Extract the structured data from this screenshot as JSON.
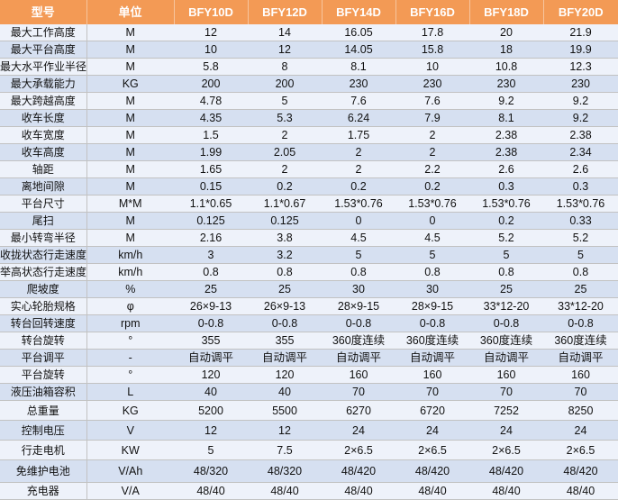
{
  "table": {
    "headers": [
      "型号",
      "单位",
      "BFY10D",
      "BFY12D",
      "BFY14D",
      "BFY16D",
      "BFY18D",
      "BFY20D"
    ],
    "rows": [
      {
        "name": "最大工作高度",
        "unit": "M",
        "values": [
          "12",
          "14",
          "16.05",
          "17.8",
          "20",
          "21.9"
        ]
      },
      {
        "name": "最大平台高度",
        "unit": "M",
        "values": [
          "10",
          "12",
          "14.05",
          "15.8",
          "18",
          "19.9"
        ]
      },
      {
        "name": "最大水平作业半径",
        "unit": "M",
        "values": [
          "5.8",
          "8",
          "8.1",
          "10",
          "10.8",
          "12.3"
        ]
      },
      {
        "name": "最大承载能力",
        "unit": "KG",
        "values": [
          "200",
          "200",
          "230",
          "230",
          "230",
          "230"
        ]
      },
      {
        "name": "最大跨越高度",
        "unit": "M",
        "values": [
          "4.78",
          "5",
          "7.6",
          "7.6",
          "9.2",
          "9.2"
        ]
      },
      {
        "name": "收车长度",
        "unit": "M",
        "values": [
          "4.35",
          "5.3",
          "6.24",
          "7.9",
          "8.1",
          "9.2"
        ]
      },
      {
        "name": "收车宽度",
        "unit": "M",
        "values": [
          "1.5",
          "2",
          "1.75",
          "2",
          "2.38",
          "2.38"
        ]
      },
      {
        "name": "收车高度",
        "unit": "M",
        "values": [
          "1.99",
          "2.05",
          "2",
          "2",
          "2.38",
          "2.34"
        ]
      },
      {
        "name": "轴距",
        "unit": "M",
        "values": [
          "1.65",
          "2",
          "2",
          "2.2",
          "2.6",
          "2.6"
        ]
      },
      {
        "name": "离地间隙",
        "unit": "M",
        "values": [
          "0.15",
          "0.2",
          "0.2",
          "0.2",
          "0.3",
          "0.3"
        ]
      },
      {
        "name": "平台尺寸",
        "unit": "M*M",
        "values": [
          "1.1*0.65",
          "1.1*0.67",
          "1.53*0.76",
          "1.53*0.76",
          "1.53*0.76",
          "1.53*0.76"
        ]
      },
      {
        "name": "尾扫",
        "unit": "M",
        "values": [
          "0.125",
          "0.125",
          "0",
          "0",
          "0.2",
          "0.33"
        ]
      },
      {
        "name": "最小转弯半径",
        "unit": "M",
        "values": [
          "2.16",
          "3.8",
          "4.5",
          "4.5",
          "5.2",
          "5.2"
        ]
      },
      {
        "name": "收拢状态行走速度",
        "unit": "km/h",
        "values": [
          "3",
          "3.2",
          "5",
          "5",
          "5",
          "5"
        ]
      },
      {
        "name": "举高状态行走速度",
        "unit": "km/h",
        "values": [
          "0.8",
          "0.8",
          "0.8",
          "0.8",
          "0.8",
          "0.8"
        ]
      },
      {
        "name": "爬坡度",
        "unit": "%",
        "values": [
          "25",
          "25",
          "30",
          "30",
          "25",
          "25"
        ]
      },
      {
        "name": "实心轮胎规格",
        "unit": "φ",
        "values": [
          "26×9-13",
          "26×9-13",
          "28×9-15",
          "28×9-15",
          "33*12-20",
          "33*12-20"
        ]
      },
      {
        "name": "转台回转速度",
        "unit": "rpm",
        "values": [
          "0-0.8",
          "0-0.8",
          "0-0.8",
          "0-0.8",
          "0-0.8",
          "0-0.8"
        ]
      },
      {
        "name": "转台旋转",
        "unit": "°",
        "values": [
          "355",
          "355",
          "360度连续",
          "360度连续",
          "360度连续",
          "360度连续"
        ]
      },
      {
        "name": "平台调平",
        "unit": "-",
        "values": [
          "自动调平",
          "自动调平",
          "自动调平",
          "自动调平",
          "自动调平",
          "自动调平"
        ]
      },
      {
        "name": "平台旋转",
        "unit": "°",
        "values": [
          "120",
          "120",
          "160",
          "160",
          "160",
          "160"
        ]
      },
      {
        "name": "液压油箱容积",
        "unit": "L",
        "values": [
          "40",
          "40",
          "70",
          "70",
          "70",
          "70"
        ]
      },
      {
        "name": "总重量",
        "unit": "KG",
        "values": [
          "5200",
          "5500",
          "6270",
          "6720",
          "7252",
          "8250"
        ]
      },
      {
        "name": "控制电压",
        "unit": "V",
        "values": [
          "12",
          "12",
          "24",
          "24",
          "24",
          "24"
        ]
      },
      {
        "name": "行走电机",
        "unit": "KW",
        "values": [
          "5",
          "7.5",
          "2×6.5",
          "2×6.5",
          "2×6.5",
          "2×6.5"
        ]
      },
      {
        "name": "免维护电池",
        "unit": "V/Ah",
        "values": [
          "48/320",
          "48/320",
          "48/420",
          "48/420",
          "48/420",
          "48/420"
        ]
      },
      {
        "name": "充电器",
        "unit": "V/A",
        "values": [
          "48/40",
          "48/40",
          "48/40",
          "48/40",
          "48/40",
          "48/40"
        ]
      }
    ]
  }
}
